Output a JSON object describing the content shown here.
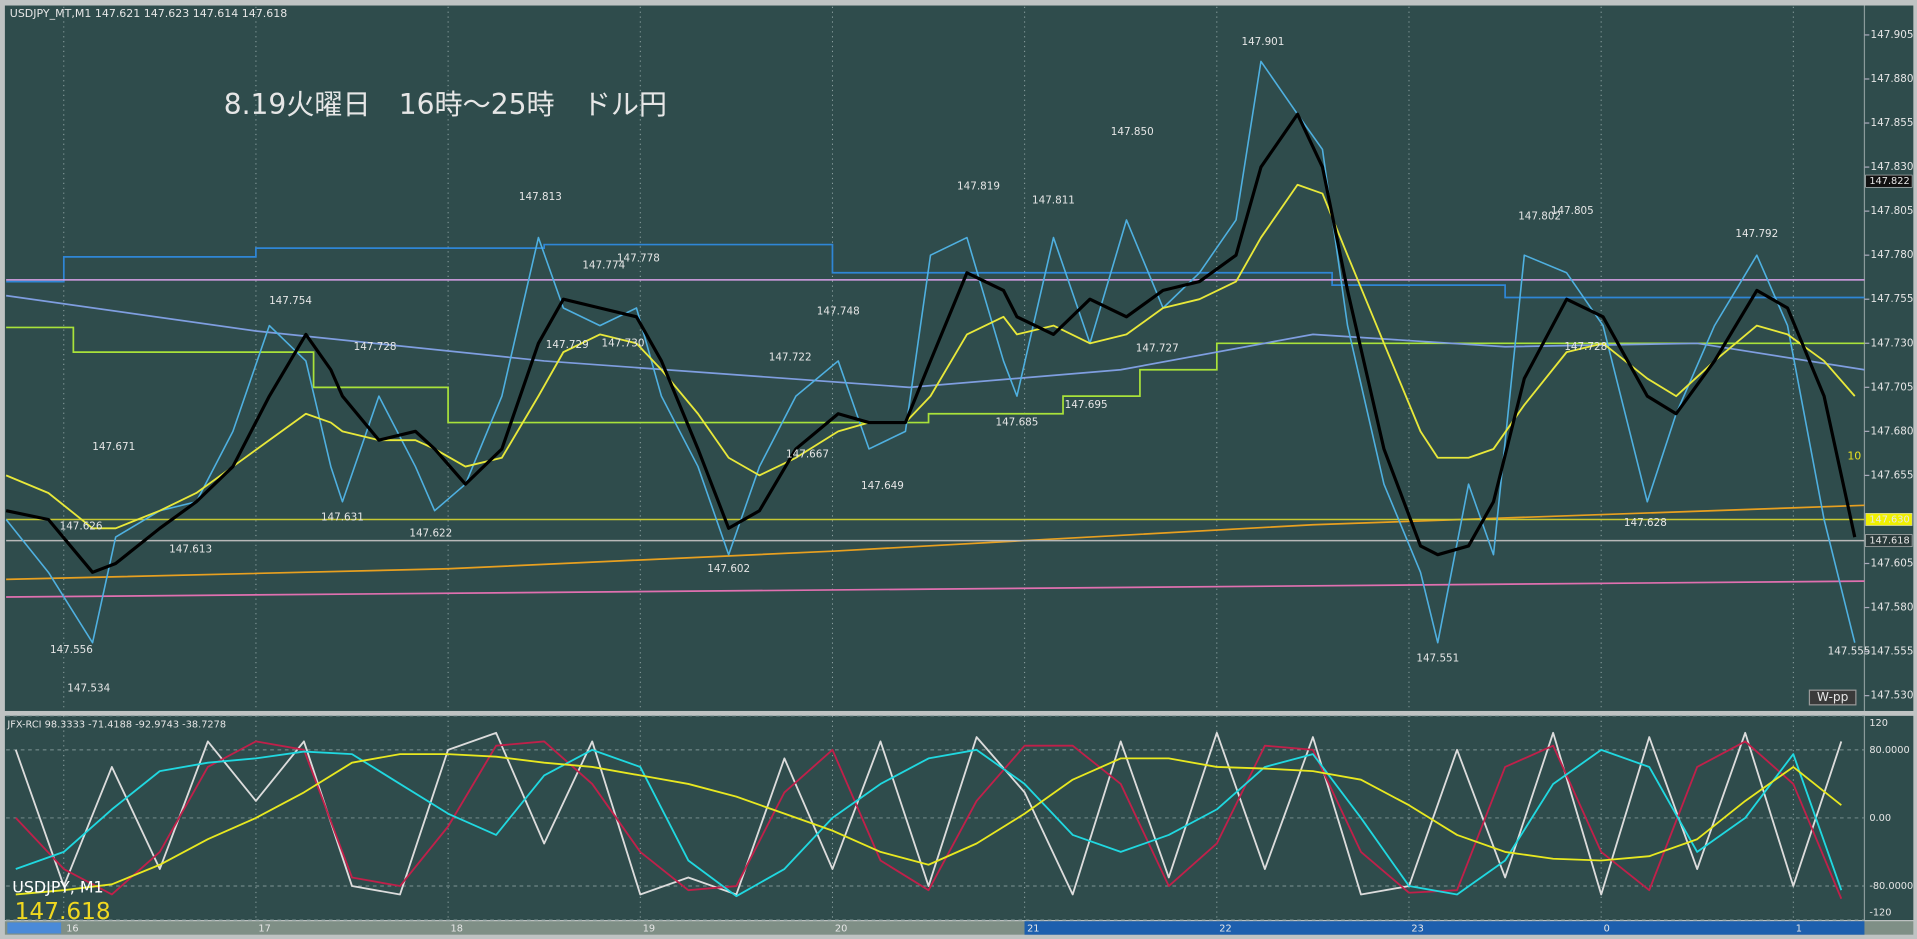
{
  "chart_data": [
    {
      "type": "line",
      "header": "USDJPY_MT,M1  147.621 147.623 147.614 147.618",
      "title": "8.19火曜日　16時～25時　ドル円",
      "xlim": [
        15.7,
        25.37
      ],
      "ylim": [
        147.522,
        147.921
      ],
      "yticks": [
        147.905,
        {
          "value": 147.88,
          "label": "147.880"
        },
        147.855,
        {
          "value": 147.83,
          "label": "147.830"
        },
        147.805,
        {
          "value": 147.78,
          "label": "147.780"
        },
        147.755,
        {
          "value": 147.73,
          "label": "147.730"
        },
        147.705,
        {
          "value": 147.68,
          "label": "147.680"
        },
        147.655,
        147.605,
        {
          "value": 147.58,
          "label": "147.580"
        },
        147.555,
        {
          "value": 147.53,
          "label": "147.530"
        }
      ],
      "x": [
        15.7,
        15.92,
        16.15,
        16.27,
        16.5,
        16.69,
        16.88,
        17.07,
        17.26,
        17.39,
        17.45,
        17.64,
        17.83,
        17.93,
        18.09,
        18.28,
        18.47,
        18.6,
        18.79,
        18.98,
        19.11,
        19.3,
        19.46,
        19.62,
        19.81,
        20.03,
        20.19,
        20.38,
        20.51,
        20.7,
        20.89,
        20.96,
        21.15,
        21.34,
        21.53,
        21.72,
        21.91,
        22.1,
        22.23,
        22.42,
        22.55,
        22.68,
        22.87,
        23.06,
        23.15,
        23.31,
        23.44,
        23.6,
        23.82,
        24.01,
        24.24,
        24.39,
        24.59,
        24.81,
        24.97,
        25.16,
        25.32
      ],
      "series": [
        {
          "color": "#4fb0e0",
          "values": [
            147.63,
            147.6,
            147.56,
            147.62,
            147.635,
            147.64,
            147.68,
            147.74,
            147.72,
            147.66,
            147.64,
            147.7,
            147.66,
            147.635,
            147.65,
            147.7,
            147.79,
            147.75,
            147.74,
            147.75,
            147.7,
            147.66,
            147.61,
            147.66,
            147.7,
            147.72,
            147.67,
            147.68,
            147.78,
            147.79,
            147.72,
            147.7,
            147.79,
            147.73,
            147.8,
            147.75,
            147.77,
            147.8,
            147.89,
            147.86,
            147.84,
            147.74,
            147.65,
            147.6,
            147.56,
            147.65,
            147.61,
            147.78,
            147.77,
            147.74,
            147.64,
            147.69,
            147.74,
            147.78,
            147.74,
            147.63,
            147.56
          ]
        },
        {
          "color": "#e8e83a",
          "values": [
            147.655,
            147.645,
            147.625,
            147.625,
            147.635,
            147.645,
            147.66,
            147.675,
            147.69,
            147.685,
            147.68,
            147.675,
            147.675,
            147.67,
            147.66,
            147.665,
            147.7,
            147.725,
            147.735,
            147.73,
            147.715,
            147.69,
            147.665,
            147.655,
            147.665,
            147.68,
            147.685,
            147.685,
            147.7,
            147.735,
            147.745,
            147.735,
            147.74,
            147.73,
            147.735,
            147.75,
            147.755,
            147.765,
            147.79,
            147.82,
            147.815,
            147.78,
            147.73,
            147.68,
            147.665,
            147.665,
            147.67,
            147.695,
            147.725,
            147.73,
            147.71,
            147.7,
            147.72,
            147.74,
            147.735,
            147.72,
            147.7
          ]
        },
        {
          "color": "#000000",
          "values": [
            147.635,
            147.63,
            147.6,
            147.605,
            147.625,
            147.64,
            147.66,
            147.7,
            147.735,
            147.715,
            147.7,
            147.675,
            147.68,
            147.67,
            147.65,
            147.67,
            147.73,
            147.755,
            147.75,
            147.745,
            147.72,
            147.67,
            147.625,
            147.635,
            147.67,
            147.69,
            147.685,
            147.685,
            147.72,
            147.77,
            147.76,
            147.745,
            147.735,
            147.755,
            147.745,
            147.76,
            147.765,
            147.78,
            147.83,
            147.86,
            147.83,
            147.76,
            147.67,
            147.615,
            147.61,
            147.615,
            147.64,
            147.71,
            147.755,
            147.745,
            147.7,
            147.69,
            147.72,
            147.76,
            147.75,
            147.7,
            147.62
          ]
        }
      ],
      "overlays": [
        {
          "color": "#2f86d6",
          "x": [
            15.7,
            16.0,
            16.0,
            17.0,
            17.0,
            18.5,
            18.5,
            20.0,
            20.0,
            22.6,
            22.6,
            23.5,
            23.5,
            25.37
          ],
          "values": [
            147.765,
            147.765,
            147.779,
            147.779,
            147.784,
            147.784,
            147.786,
            147.786,
            147.77,
            147.77,
            147.763,
            147.763,
            147.756,
            147.756
          ]
        },
        {
          "color": "#a9e23a",
          "x": [
            15.7,
            16.05,
            16.05,
            17.3,
            17.3,
            18.0,
            18.0,
            20.5,
            20.5,
            21.2,
            21.2,
            21.6,
            21.6,
            22.0,
            22.0,
            25.37
          ],
          "values": [
            147.739,
            147.739,
            147.725,
            147.725,
            147.705,
            147.705,
            147.685,
            147.685,
            147.69,
            147.69,
            147.7,
            147.7,
            147.715,
            147.715,
            147.73,
            147.73
          ]
        },
        {
          "color": "#7f9ee0",
          "x": [
            15.7,
            17,
            18.5,
            20.4,
            21.5,
            22.5,
            23.5,
            24.5,
            25.37
          ],
          "values": [
            147.757,
            147.737,
            147.72,
            147.705,
            147.715,
            147.735,
            147.728,
            147.73,
            147.715
          ]
        },
        {
          "color": "#e8a020",
          "x": [
            15.7,
            18,
            20,
            22.5,
            25.37
          ],
          "values": [
            147.596,
            147.602,
            147.612,
            147.627,
            147.638
          ]
        },
        {
          "color": "#e070b0",
          "x": [
            15.7,
            25.37
          ],
          "values": [
            147.586,
            147.595
          ]
        }
      ],
      "hlines": [
        {
          "value": 147.766,
          "color": "#d9a0e8"
        },
        {
          "value": 147.63,
          "color": "#c8c832"
        },
        {
          "value": 147.618,
          "color": "#b8b8b8"
        }
      ],
      "annotations": {
        "x": [
          17.18,
          16.26,
          16.09,
          16.66,
          16.04,
          16.13,
          17.45,
          17.62,
          17.91,
          18.48,
          18.81,
          18.99,
          18.62,
          18.91,
          19.46,
          19.78,
          19.87,
          20.03,
          20.26,
          20.76,
          21.15,
          20.96,
          21.32,
          21.56,
          21.69,
          22.24,
          23.15,
          23.68,
          23.85,
          23.92,
          24.23,
          24.81,
          25.29
        ],
        "values": [
          147.754,
          147.671,
          147.626,
          147.613,
          147.556,
          147.534,
          147.631,
          147.728,
          147.622,
          147.813,
          147.774,
          147.778,
          147.729,
          147.73,
          147.602,
          147.722,
          147.667,
          147.748,
          147.649,
          147.819,
          147.811,
          147.685,
          147.695,
          147.85,
          147.727,
          147.901,
          147.551,
          147.802,
          147.805,
          147.728,
          147.628,
          147.792,
          147.555
        ],
        "value_labels": [
          "147.754",
          "147.671",
          "147.626",
          "147.613",
          "147.556",
          "147.534",
          "147.631",
          "147.728",
          "147.622",
          "147.813",
          "147.774",
          "147.778",
          "147.729",
          "147.730",
          "147.602",
          "147.722",
          "147.667",
          "147.748",
          "147.649",
          "147.819",
          "147.811",
          "147.685",
          "147.695",
          "147.850",
          "147.727",
          "147.901",
          "147.551",
          "147.802",
          "147.805",
          "147.728",
          "147.628",
          "147.792",
          "147.555"
        ]
      },
      "price_tags": {
        "values": [
          147.822,
          147.63,
          147.618
        ],
        "value_labels": [
          "147.822",
          "147.630",
          "147.618"
        ],
        "colors": [
          "#111111",
          "#f0f000",
          "#2a3a3a"
        ]
      },
      "marker_label": "10",
      "pivot_label": "W-pp"
    },
    {
      "type": "line",
      "title": "JFX-RCI 98.3333 -71.4188 -92.9743 -38.7278",
      "symbol": "USDJPY, M1",
      "last_price": 147.618,
      "grid": true,
      "xlim": [
        15.7,
        25.37
      ],
      "ylim": [
        -120,
        120
      ],
      "xticks": [
        16,
        17,
        18,
        19,
        20,
        21,
        22,
        23,
        {
          "value": 24,
          "label": "0"
        },
        {
          "value": 25,
          "label": "1"
        }
      ],
      "yticks": [
        120,
        {
          "value": 80,
          "label": "80.0000"
        },
        {
          "value": 0,
          "label": "0.00"
        },
        {
          "value": -80,
          "label": "-80.0000"
        },
        -120
      ],
      "x": [
        15.75,
        16,
        16.25,
        16.5,
        16.75,
        17,
        17.25,
        17.5,
        17.75,
        18,
        18.25,
        18.5,
        18.75,
        19,
        19.25,
        19.5,
        19.75,
        20,
        20.25,
        20.5,
        20.75,
        21,
        21.25,
        21.5,
        21.75,
        22,
        22.25,
        22.5,
        22.75,
        23,
        23.25,
        23.5,
        23.75,
        24,
        24.25,
        24.5,
        24.75,
        25,
        25.25
      ],
      "series": [
        {
          "color": "#dcdcdc",
          "values": [
            80,
            -80,
            60,
            -60,
            90,
            20,
            90,
            -80,
            -90,
            80,
            100,
            -30,
            90,
            -90,
            -70,
            -90,
            70,
            -60,
            90,
            -80,
            95,
            30,
            -90,
            90,
            -70,
            100,
            -60,
            95,
            -90,
            -80,
            80,
            -70,
            100,
            -90,
            95,
            -60,
            100,
            -80,
            90
          ]
        },
        {
          "color": "#c0204a",
          "values": [
            0,
            -60,
            -90,
            -40,
            60,
            90,
            80,
            -70,
            -80,
            -10,
            85,
            90,
            40,
            -40,
            -85,
            -80,
            30,
            80,
            -50,
            -85,
            20,
            85,
            85,
            40,
            -80,
            -30,
            85,
            80,
            -40,
            -88,
            -85,
            60,
            85,
            -40,
            -85,
            60,
            90,
            40,
            -95
          ]
        },
        {
          "color": "#20d8e0",
          "values": [
            -60,
            -40,
            10,
            55,
            65,
            70,
            78,
            75,
            40,
            5,
            -20,
            50,
            80,
            60,
            -50,
            -92,
            -60,
            0,
            40,
            70,
            80,
            40,
            -20,
            -40,
            -20,
            10,
            60,
            75,
            0,
            -80,
            -90,
            -50,
            40,
            80,
            60,
            -40,
            0,
            75,
            -85
          ]
        },
        {
          "color": "#e8e820",
          "values": [
            -90,
            -85,
            -78,
            -55,
            -25,
            0,
            30,
            65,
            75,
            75,
            72,
            65,
            60,
            50,
            40,
            25,
            5,
            -15,
            -40,
            -55,
            -30,
            5,
            45,
            70,
            70,
            60,
            58,
            55,
            45,
            15,
            -20,
            -40,
            -48,
            -50,
            -45,
            -25,
            20,
            60,
            15
          ]
        }
      ]
    }
  ]
}
